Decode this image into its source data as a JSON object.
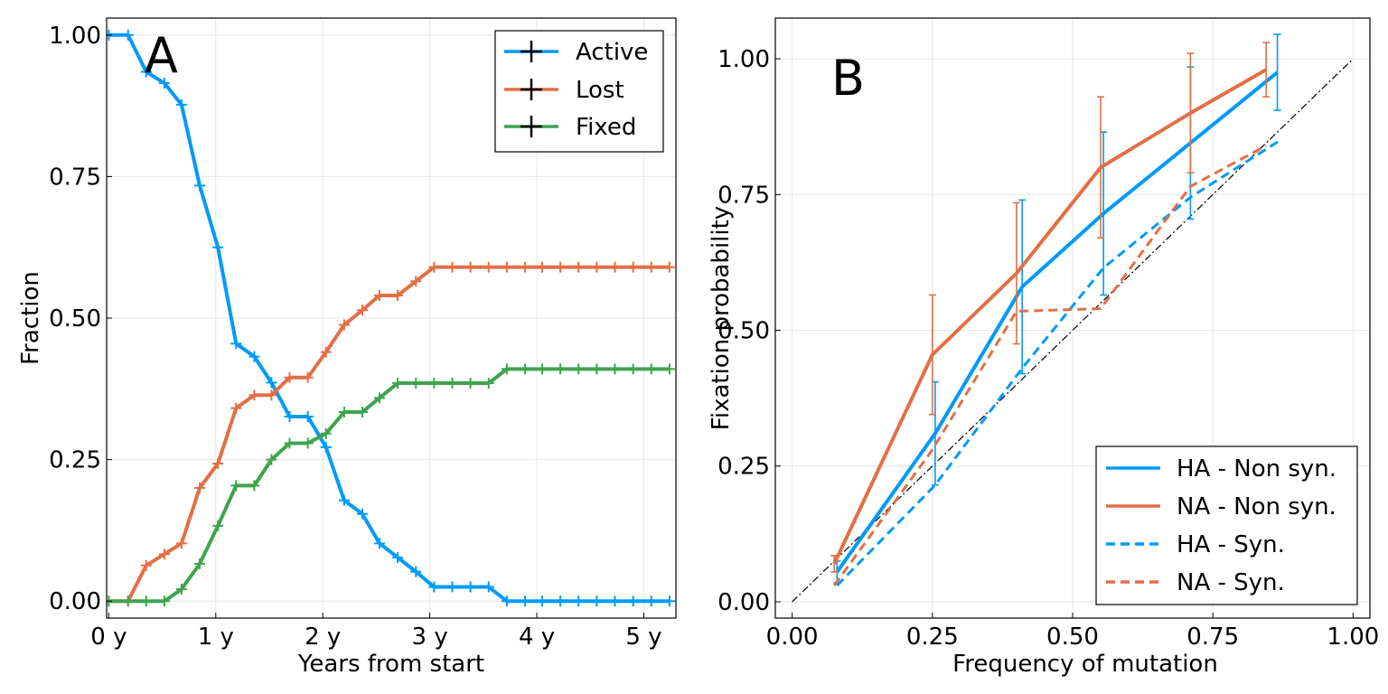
{
  "colors": {
    "blue": "#009AF9",
    "orange": "#E26F46",
    "green": "#3EA44E",
    "identity": "#000000"
  },
  "chart_data": [
    {
      "type": "line",
      "panel_label": "A",
      "title": "",
      "xlabel": "Years from start",
      "ylabel": "Fraction",
      "xlim": [
        -0.02,
        5.3
      ],
      "ylim": [
        -0.03,
        1.03
      ],
      "x_ticks": [
        0,
        1,
        2,
        3,
        4,
        5
      ],
      "x_tick_labels": [
        "0 y",
        "1 y",
        "2 y",
        "3 y",
        "4 y",
        "5 y"
      ],
      "y_ticks": [
        0,
        0.25,
        0.5,
        0.75,
        1.0
      ],
      "y_tick_labels": [
        "0.00",
        "0.25",
        "0.50",
        "0.75",
        "1.00"
      ],
      "grid": true,
      "legend_position": "top-right",
      "marker": "cross",
      "x": [
        0,
        0.18,
        0.35,
        0.52,
        0.68,
        0.85,
        1.02,
        1.19,
        1.36,
        1.52,
        1.69,
        1.86,
        2.03,
        2.2,
        2.37,
        2.53,
        2.7,
        2.87,
        3.04,
        3.21,
        3.38,
        3.55,
        3.72,
        3.89,
        4.05,
        4.22,
        4.39,
        4.56,
        4.73,
        4.9,
        5.07,
        5.24
      ],
      "series": [
        {
          "name": "Active",
          "color": "#009AF9",
          "values": [
            1.0,
            1.0,
            0.935,
            0.915,
            0.877,
            0.734,
            0.625,
            0.455,
            0.432,
            0.386,
            0.326,
            0.326,
            0.272,
            0.178,
            0.154,
            0.102,
            0.077,
            0.052,
            0.025,
            0.025,
            0.025,
            0.025,
            0.0,
            0.0,
            0.0,
            0.0,
            0.0,
            0.0,
            0.0,
            0.0,
            0.0,
            0.0
          ]
        },
        {
          "name": "Lost",
          "color": "#E26F46",
          "values": [
            0.0,
            0.0,
            0.063,
            0.083,
            0.102,
            0.2,
            0.243,
            0.341,
            0.364,
            0.364,
            0.395,
            0.395,
            0.44,
            0.488,
            0.514,
            0.54,
            0.54,
            0.565,
            0.59,
            0.59,
            0.59,
            0.59,
            0.59,
            0.59,
            0.59,
            0.59,
            0.59,
            0.59,
            0.59,
            0.59,
            0.59,
            0.59
          ]
        },
        {
          "name": "Fixed",
          "color": "#3EA44E",
          "values": [
            0.0,
            0.0,
            0.0,
            0.0,
            0.021,
            0.066,
            0.133,
            0.204,
            0.204,
            0.25,
            0.279,
            0.279,
            0.296,
            0.334,
            0.334,
            0.359,
            0.385,
            0.385,
            0.385,
            0.385,
            0.385,
            0.385,
            0.41,
            0.41,
            0.41,
            0.41,
            0.41,
            0.41,
            0.41,
            0.41,
            0.41,
            0.41
          ]
        }
      ]
    },
    {
      "type": "line",
      "panel_label": "B",
      "title": "",
      "xlabel": "Frequency of mutation",
      "ylabel": "Fixation probability",
      "xlim": [
        -0.03,
        1.03
      ],
      "ylim": [
        -0.03,
        1.075
      ],
      "x_ticks": [
        0,
        0.25,
        0.5,
        0.75,
        1.0
      ],
      "x_tick_labels": [
        "0.00",
        "0.25",
        "0.50",
        "0.75",
        "1.00"
      ],
      "y_ticks": [
        0,
        0.25,
        0.5,
        0.75,
        1.0
      ],
      "y_tick_labels": [
        "0.00",
        "0.25",
        "0.50",
        "0.75",
        "1.00"
      ],
      "grid": true,
      "legend_position": "bottom-right",
      "identity_line": {
        "x": [
          0,
          1
        ],
        "y": [
          0,
          1
        ],
        "style": "dash-dot"
      },
      "series": [
        {
          "name": "HA - Non syn.",
          "color": "#009AF9",
          "dash": "solid",
          "x": [
            0.08,
            0.255,
            0.41,
            0.555,
            0.71,
            0.865
          ],
          "y": [
            0.055,
            0.31,
            0.58,
            0.715,
            0.845,
            0.975
          ],
          "err": [
            0.02,
            0.095,
            0.16,
            0.15,
            0.14,
            0.07
          ]
        },
        {
          "name": "NA - Non syn.",
          "color": "#E26F46",
          "dash": "solid",
          "x": [
            0.075,
            0.25,
            0.4,
            0.55,
            0.71,
            0.845
          ],
          "y": [
            0.07,
            0.455,
            0.605,
            0.8,
            0.9,
            0.98
          ],
          "err": [
            0.015,
            0.11,
            0.13,
            0.13,
            0.11,
            0.05
          ]
        },
        {
          "name": "HA - Syn.",
          "color": "#009AF9",
          "dash": "dashed",
          "x": [
            0.08,
            0.255,
            0.41,
            0.555,
            0.71,
            0.87
          ],
          "y": [
            0.03,
            0.215,
            0.43,
            0.615,
            0.745,
            0.85
          ],
          "err": []
        },
        {
          "name": "NA - Syn.",
          "color": "#E26F46",
          "dash": "dashed",
          "x": [
            0.075,
            0.25,
            0.4,
            0.55,
            0.71,
            0.845
          ],
          "y": [
            0.03,
            0.28,
            0.535,
            0.54,
            0.765,
            0.84
          ],
          "err": []
        }
      ]
    }
  ]
}
